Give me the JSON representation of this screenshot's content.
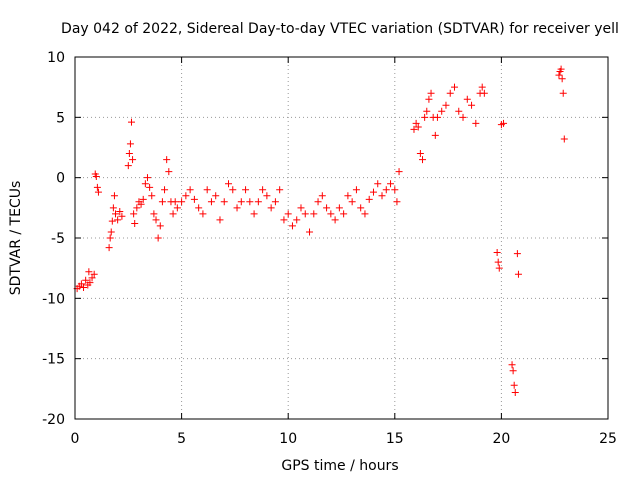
{
  "chart_data": {
    "type": "scatter",
    "title": "Day 042 of 2022, Sidereal Day-to-day VTEC variation (SDTVAR) for receiver yell",
    "xlabel": "GPS time / hours",
    "ylabel": "SDTVAR / TECUs",
    "xlim": [
      0,
      25
    ],
    "ylim": [
      -20,
      10
    ],
    "xticks": [
      0,
      5,
      10,
      15,
      20,
      25
    ],
    "yticks": [
      -20,
      -15,
      -10,
      -5,
      0,
      5,
      10
    ],
    "grid": true,
    "marker": "+",
    "color": "#ff0000",
    "series": [
      {
        "name": "SDTVAR",
        "x": [
          0.1,
          0.2,
          0.3,
          0.4,
          0.5,
          0.6,
          0.65,
          0.7,
          0.8,
          0.9,
          0.95,
          1.0,
          1.05,
          1.1,
          1.6,
          1.65,
          1.7,
          1.75,
          1.8,
          1.85,
          1.9,
          2.0,
          2.1,
          2.2,
          2.5,
          2.55,
          2.6,
          2.65,
          2.7,
          2.75,
          2.8,
          2.9,
          3.0,
          3.1,
          3.2,
          3.3,
          3.4,
          3.5,
          3.6,
          3.7,
          3.8,
          3.9,
          4.0,
          4.1,
          4.2,
          4.3,
          4.4,
          4.5,
          4.6,
          4.7,
          4.8,
          5.0,
          5.2,
          5.4,
          5.6,
          5.8,
          6.0,
          6.2,
          6.4,
          6.6,
          6.8,
          7.0,
          7.2,
          7.4,
          7.6,
          7.8,
          8.0,
          8.2,
          8.4,
          8.6,
          8.8,
          9.0,
          9.2,
          9.4,
          9.6,
          9.8,
          10.0,
          10.2,
          10.4,
          10.6,
          10.8,
          11.0,
          11.2,
          11.4,
          11.6,
          11.8,
          12.0,
          12.2,
          12.4,
          12.6,
          12.8,
          13.0,
          13.2,
          13.4,
          13.6,
          13.8,
          14.0,
          14.2,
          14.4,
          14.6,
          14.8,
          15.0,
          15.1,
          15.2,
          15.9,
          16.0,
          16.1,
          16.2,
          16.3,
          16.4,
          16.5,
          16.6,
          16.7,
          16.8,
          16.9,
          17.0,
          17.2,
          17.4,
          17.6,
          17.8,
          18.0,
          18.2,
          18.4,
          18.6,
          18.8,
          19.0,
          19.1,
          19.2,
          19.8,
          19.85,
          19.9,
          20.0,
          20.1,
          20.5,
          20.55,
          20.6,
          20.65,
          20.75,
          20.8,
          22.7,
          22.75,
          22.8,
          22.85,
          22.9,
          22.95
        ],
        "y": [
          -9.2,
          -9.0,
          -8.8,
          -9.1,
          -8.5,
          -8.9,
          -7.8,
          -8.7,
          -8.3,
          -8.0,
          0.3,
          0.1,
          -0.8,
          -1.2,
          -5.8,
          -5.0,
          -4.5,
          -3.6,
          -2.5,
          -1.5,
          -3.0,
          -3.5,
          -2.8,
          -3.2,
          1.0,
          2.0,
          2.8,
          4.6,
          1.5,
          -3.0,
          -3.8,
          -2.5,
          -2.0,
          -2.2,
          -1.8,
          -0.5,
          0.0,
          -0.8,
          -1.5,
          -3.0,
          -3.5,
          -5.0,
          -4.0,
          -2.0,
          -1.0,
          1.5,
          0.5,
          -2.0,
          -3.0,
          -2.0,
          -2.5,
          -2.0,
          -1.5,
          -1.0,
          -1.8,
          -2.5,
          -3.0,
          -1.0,
          -2.0,
          -1.5,
          -3.5,
          -2.0,
          -0.5,
          -1.0,
          -2.5,
          -2.0,
          -1.0,
          -2.0,
          -3.0,
          -2.0,
          -1.0,
          -1.5,
          -2.5,
          -2.0,
          -1.0,
          -3.5,
          -3.0,
          -4.0,
          -3.5,
          -2.5,
          -3.0,
          -4.5,
          -3.0,
          -2.0,
          -1.5,
          -2.5,
          -3.0,
          -3.5,
          -2.5,
          -3.0,
          -1.5,
          -2.0,
          -1.0,
          -2.5,
          -3.0,
          -1.8,
          -1.2,
          -0.5,
          -1.5,
          -1.0,
          -0.5,
          -1.0,
          -2.0,
          0.5,
          4.0,
          4.5,
          4.2,
          2.0,
          1.5,
          5.0,
          5.5,
          6.5,
          7.0,
          5.0,
          3.5,
          5.0,
          5.5,
          6.0,
          7.0,
          7.5,
          5.5,
          5.0,
          6.5,
          6.0,
          4.5,
          7.0,
          7.5,
          7.0,
          -6.2,
          -7.0,
          -7.5,
          4.4,
          4.5,
          -15.5,
          -16.0,
          -17.2,
          -17.8,
          -6.3,
          -8.0,
          8.5,
          8.8,
          9.0,
          8.2,
          7.0,
          3.2
        ]
      }
    ]
  }
}
